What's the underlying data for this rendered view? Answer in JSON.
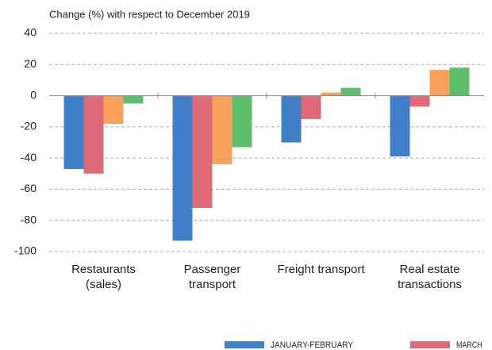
{
  "chart_data": {
    "type": "bar",
    "y_label": "Change (%) with respect to December 2019",
    "categories": [
      "Restaurants\n(sales)",
      "Passenger\ntransport",
      "Freight transport",
      "Real estate\ntransactions"
    ],
    "series": [
      {
        "name": "JANUARY-FEBRUARY",
        "color": "#3f7fc8",
        "values": [
          -47,
          -93,
          -30,
          -39
        ]
      },
      {
        "name": "MARCH",
        "color": "#df6b79",
        "values": [
          -50,
          -72,
          -15,
          -7
        ]
      },
      {
        "color": "#f9a05a",
        "values": [
          -18,
          -44,
          2,
          16.5
        ]
      },
      {
        "color": "#5dbf6a",
        "values": [
          -5,
          -33,
          5,
          18
        ]
      }
    ],
    "ylim": [
      -100,
      40
    ],
    "yticks": [
      -100,
      -80,
      -60,
      -40,
      -20,
      0,
      20,
      40
    ],
    "grid": true
  }
}
